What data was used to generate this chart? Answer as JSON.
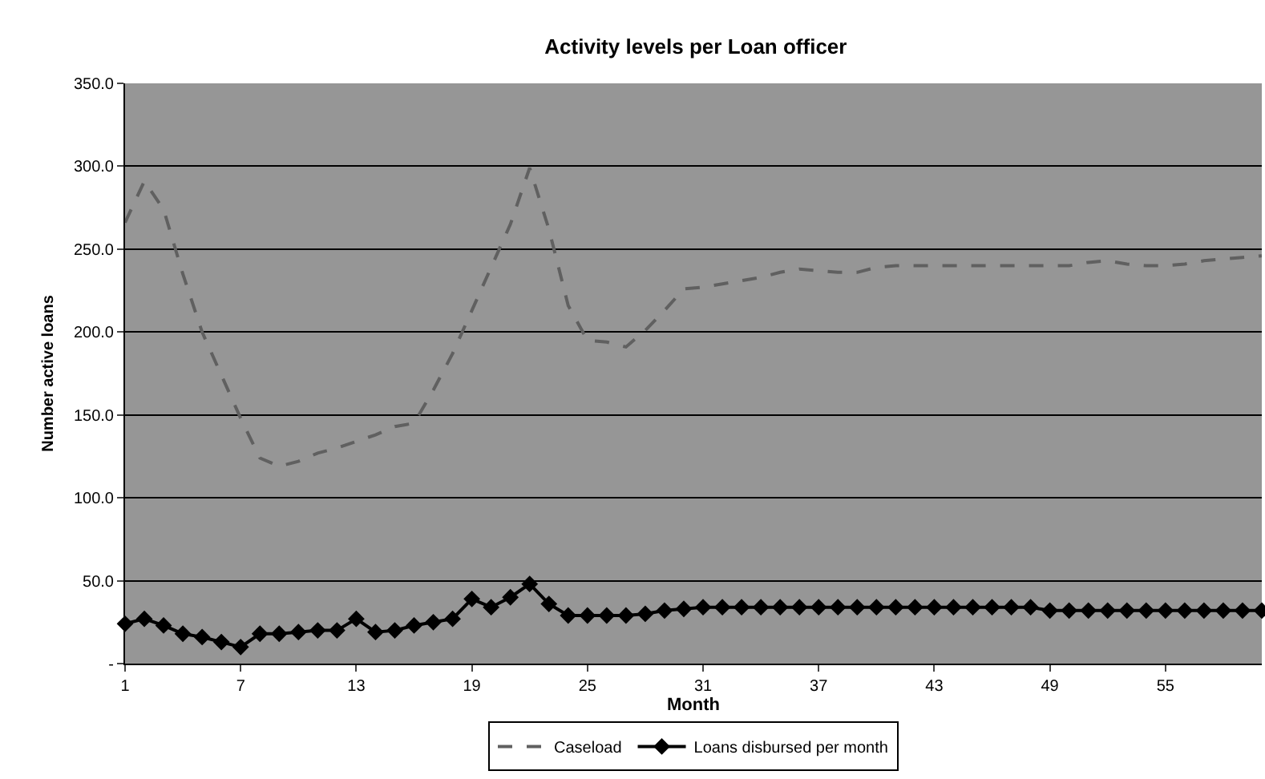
{
  "chart_data": {
    "type": "line",
    "title": "Activity levels per Loan officer",
    "xlabel": "Month",
    "ylabel": "Number active loans",
    "categories": [
      "1",
      null,
      null,
      null,
      null,
      null,
      "7",
      null,
      null,
      null,
      null,
      null,
      "13",
      null,
      null,
      null,
      null,
      null,
      "19",
      null,
      null,
      null,
      null,
      null,
      "25",
      null,
      null,
      null,
      null,
      null,
      "31",
      null,
      null,
      null,
      null,
      null,
      "37",
      null,
      null,
      null,
      null,
      null,
      "43",
      null,
      null,
      null,
      null,
      null,
      "49",
      null,
      null,
      null,
      null,
      null,
      "55",
      null,
      null,
      null,
      null,
      null
    ],
    "series": [
      {
        "name": "Caseload",
        "color": "#606060",
        "line_style": "dashed",
        "marker": "none",
        "values": [
          266,
          291,
          274,
          235,
          200,
          174,
          148,
          124,
          119,
          122,
          127,
          130,
          134,
          138,
          143,
          145,
          165,
          187,
          213,
          239,
          265,
          299,
          262,
          216,
          195,
          194,
          191,
          201,
          213,
          226,
          227,
          229,
          231,
          233,
          236,
          238,
          237,
          236,
          236,
          239,
          240,
          240,
          240,
          240,
          240,
          240,
          240,
          240,
          240,
          240,
          242,
          243,
          241,
          240,
          240,
          241,
          243,
          244,
          245,
          246
        ]
      },
      {
        "name": "Loans disbursed per month",
        "color": "#000000",
        "line_style": "solid",
        "marker": "diamond",
        "values": [
          24,
          27,
          23,
          18,
          16,
          13,
          10,
          18,
          18,
          19,
          20,
          20,
          27,
          19,
          20,
          23,
          25,
          27,
          39,
          34,
          40,
          48,
          36,
          29,
          29,
          29,
          29,
          30,
          32,
          33,
          34,
          34,
          34,
          34,
          34,
          34,
          34,
          34,
          34,
          34,
          34,
          34,
          34,
          34,
          34,
          34,
          34,
          34,
          32,
          32,
          32,
          32,
          32,
          32,
          32,
          32,
          32,
          32,
          32,
          32
        ]
      }
    ],
    "ylim": [
      0,
      350
    ],
    "yticks": [
      {
        "value": 0,
        "label": "-"
      },
      {
        "value": 50,
        "label": "50.0"
      },
      {
        "value": 100,
        "label": "100.0"
      },
      {
        "value": 150,
        "label": "150.0"
      },
      {
        "value": 200,
        "label": "200.0"
      },
      {
        "value": 250,
        "label": "250.0"
      },
      {
        "value": 300,
        "label": "300.0"
      },
      {
        "value": 350,
        "label": "350.0"
      }
    ],
    "grid": "y",
    "legend": "bottom"
  }
}
